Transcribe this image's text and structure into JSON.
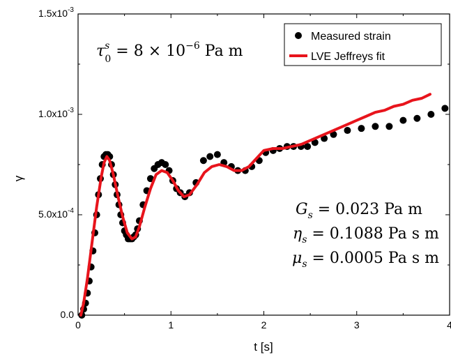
{
  "chart_data": {
    "type": "scatter",
    "xlabel": "t [s]",
    "ylabel": "γ",
    "xlim": [
      0,
      4
    ],
    "ylim": [
      0,
      0.0015
    ],
    "x_ticks": [
      {
        "value": 0,
        "label": "0"
      },
      {
        "value": 1,
        "label": "1"
      },
      {
        "value": 2,
        "label": "2"
      },
      {
        "value": 3,
        "label": "3"
      },
      {
        "value": 4,
        "label": "4"
      }
    ],
    "y_ticks": [
      {
        "value": 0,
        "label_main": "0.0",
        "label_exp": ""
      },
      {
        "value": 0.0005,
        "label_main": "5.0x10",
        "label_exp": "-4"
      },
      {
        "value": 0.001,
        "label_main": "1.0x10",
        "label_exp": "-3"
      },
      {
        "value": 0.0015,
        "label_main": "1.5x10",
        "label_exp": "-3"
      }
    ],
    "legend_position": "top-right",
    "series": [
      {
        "name": "Measured strain",
        "kind": "scatter",
        "color": "#000000",
        "x": [
          0.04,
          0.06,
          0.08,
          0.1,
          0.12,
          0.14,
          0.16,
          0.18,
          0.2,
          0.22,
          0.24,
          0.26,
          0.28,
          0.3,
          0.32,
          0.34,
          0.36,
          0.38,
          0.4,
          0.42,
          0.44,
          0.46,
          0.48,
          0.5,
          0.52,
          0.54,
          0.56,
          0.58,
          0.6,
          0.62,
          0.64,
          0.66,
          0.7,
          0.74,
          0.78,
          0.82,
          0.86,
          0.9,
          0.94,
          0.98,
          1.02,
          1.06,
          1.1,
          1.15,
          1.2,
          1.27,
          1.35,
          1.42,
          1.5,
          1.57,
          1.65,
          1.72,
          1.8,
          1.87,
          1.95,
          2.02,
          2.1,
          2.17,
          2.25,
          2.32,
          2.4,
          2.47,
          2.55,
          2.65,
          2.75,
          2.9,
          3.05,
          3.2,
          3.35,
          3.5,
          3.65,
          3.8,
          3.95
        ],
        "y": [
          0.0,
          3e-05,
          6e-05,
          0.00011,
          0.00017,
          0.00024,
          0.00032,
          0.00041,
          0.0005,
          0.0006,
          0.00068,
          0.00075,
          0.00079,
          0.0008,
          0.0008,
          0.00079,
          0.00075,
          0.0007,
          0.00065,
          0.0006,
          0.00055,
          0.0005,
          0.00046,
          0.00042,
          0.0004,
          0.00038,
          0.00038,
          0.00038,
          0.00039,
          0.0004,
          0.00043,
          0.00047,
          0.00055,
          0.00062,
          0.00068,
          0.00073,
          0.00075,
          0.00076,
          0.00075,
          0.00072,
          0.00067,
          0.00063,
          0.00061,
          0.00059,
          0.00061,
          0.00066,
          0.00077,
          0.00079,
          0.0008,
          0.00076,
          0.00074,
          0.00072,
          0.00072,
          0.00074,
          0.00077,
          0.00081,
          0.00082,
          0.00083,
          0.00084,
          0.00084,
          0.00084,
          0.00084,
          0.00086,
          0.00088,
          0.0009,
          0.00092,
          0.00093,
          0.00094,
          0.00094,
          0.00097,
          0.00098,
          0.001,
          0.00103
        ]
      },
      {
        "name": "LVE Jeffreys fit",
        "kind": "line",
        "color": "#e8141c",
        "x": [
          0.03,
          0.06,
          0.1,
          0.15,
          0.2,
          0.25,
          0.28,
          0.31,
          0.34,
          0.38,
          0.43,
          0.48,
          0.53,
          0.58,
          0.62,
          0.66,
          0.72,
          0.78,
          0.84,
          0.9,
          0.96,
          1.02,
          1.08,
          1.14,
          1.2,
          1.28,
          1.36,
          1.44,
          1.52,
          1.6,
          1.68,
          1.76,
          1.84,
          1.92,
          2.0,
          2.1,
          2.2,
          2.3,
          2.4,
          2.5,
          2.6,
          2.7,
          2.8,
          2.9,
          3.0,
          3.1,
          3.2,
          3.3,
          3.4,
          3.5,
          3.6,
          3.7,
          3.79
        ],
        "y": [
          0.0,
          6e-05,
          0.00018,
          0.00036,
          0.00054,
          0.00069,
          0.00076,
          0.00079,
          0.00077,
          0.0007,
          0.00059,
          0.00049,
          0.00041,
          0.00038,
          0.00039,
          0.00044,
          0.00054,
          0.00063,
          0.0007,
          0.00072,
          0.00071,
          0.00067,
          0.00062,
          0.00059,
          0.0006,
          0.00065,
          0.00071,
          0.00074,
          0.00075,
          0.00074,
          0.00072,
          0.00072,
          0.00074,
          0.00078,
          0.00082,
          0.00083,
          0.00083,
          0.00084,
          0.00085,
          0.00087,
          0.00089,
          0.00091,
          0.00093,
          0.00095,
          0.00097,
          0.00099,
          0.00101,
          0.00102,
          0.00104,
          0.00105,
          0.00107,
          0.00108,
          0.0011
        ]
      }
    ],
    "annotations": {
      "tau": {
        "sym": "τ",
        "sup": "s",
        "sub": "0",
        "rhs": " = 8 × 10",
        "rhs_exp": "−6",
        "unit": " Pa m"
      },
      "params": [
        {
          "sym": "G",
          "sub": "s",
          "rhs": " = 0.023 Pa m"
        },
        {
          "sym": "η",
          "sub": "s",
          "rhs": " = 0.1088 Pa s m"
        },
        {
          "sym": "μ",
          "sub": "s",
          "rhs": " = 0.0005 Pa s m"
        }
      ]
    }
  }
}
